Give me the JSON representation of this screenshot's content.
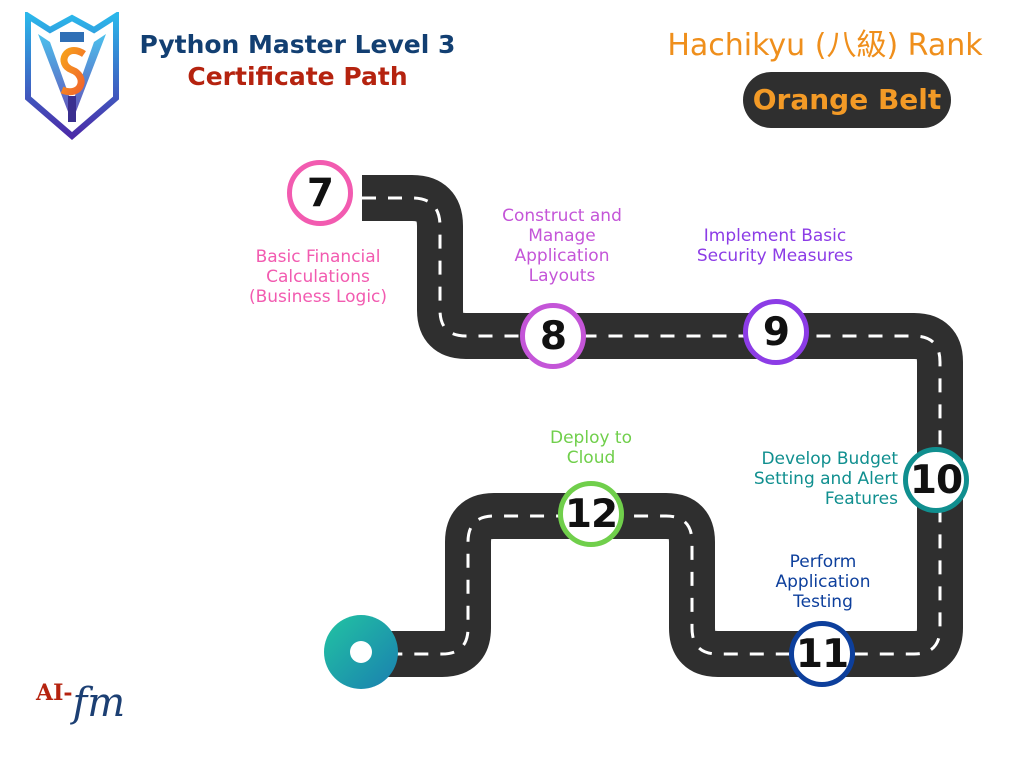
{
  "header": {
    "title": "Python Master Level 3",
    "subtitle": "Certificate Path",
    "rank": "Hachikyu (八級) Rank",
    "belt": "Orange Belt"
  },
  "milestones": [
    {
      "number": "7",
      "label_lines": [
        "Basic Financial",
        "Calculations",
        "(Business Logic)"
      ],
      "color": "#f25bb0"
    },
    {
      "number": "8",
      "label_lines": [
        "Construct and",
        "Manage",
        "Application",
        "Layouts"
      ],
      "color": "#c455d8"
    },
    {
      "number": "9",
      "label_lines": [
        "Implement Basic",
        "Security Measures"
      ],
      "color": "#8c3ce6"
    },
    {
      "number": "10",
      "label_lines": [
        "Develop Budget",
        "Setting and Alert",
        "Features"
      ],
      "color": "#108f8f"
    },
    {
      "number": "11",
      "label_lines": [
        "Perform",
        "Application",
        "Testing"
      ],
      "color": "#0d3f9c"
    },
    {
      "number": "12",
      "label_lines": [
        "Deploy to",
        "Cloud"
      ],
      "color": "#70cf4b"
    }
  ],
  "brand": {
    "prefix": "AI-",
    "name": "fm"
  },
  "icons": {
    "logo": "shield-crest-logo-icon",
    "start": "start-dot-icon"
  }
}
